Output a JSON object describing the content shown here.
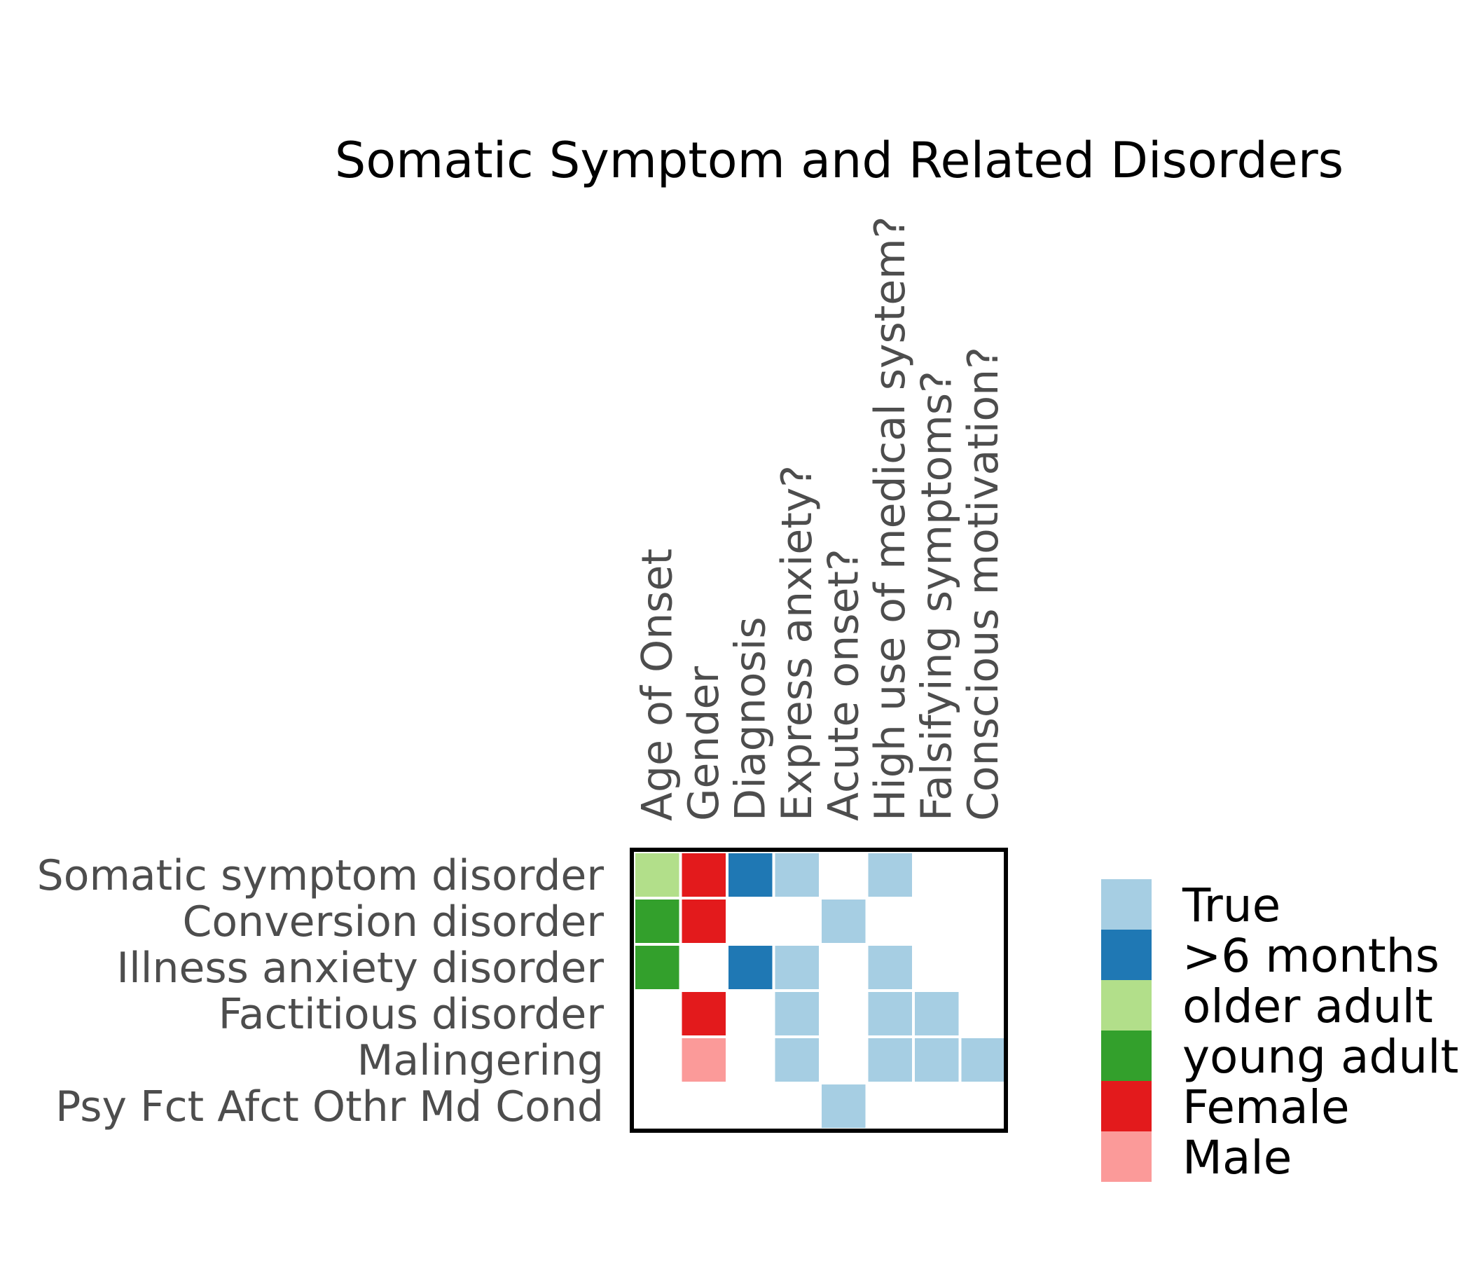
{
  "chart_data": {
    "type": "heatmap",
    "title": "Somatic Symptom and Related Disorders",
    "columns": [
      "Age of Onset",
      "Gender",
      "Diagnosis",
      "Express anxiety?",
      "Acute onset?",
      "High use of medical system?",
      "Falsifying symptoms?",
      "Conscious motivation?"
    ],
    "rows": [
      "Somatic symptom disorder",
      "Conversion disorder",
      "Illness anxiety disorder",
      "Factitious disorder",
      "Malingering",
      "Psy Fct Afct Othr Md Cond"
    ],
    "categories": [
      {
        "name": "True",
        "color": "#a6cee3"
      },
      {
        "name": ">6 months",
        "color": "#1f78b4"
      },
      {
        "name": "older adult",
        "color": "#b2df8a"
      },
      {
        "name": "young adult",
        "color": "#33a02c"
      },
      {
        "name": "Female",
        "color": "#e31a1c"
      },
      {
        "name": "Male",
        "color": "#fb9a99"
      }
    ],
    "cells": [
      [
        "older adult",
        "Female",
        ">6 months",
        "True",
        null,
        "True",
        null,
        null
      ],
      [
        "young adult",
        "Female",
        null,
        null,
        "True",
        null,
        null,
        null
      ],
      [
        "young adult",
        null,
        ">6 months",
        "True",
        null,
        "True",
        null,
        null
      ],
      [
        null,
        "Female",
        null,
        "True",
        null,
        "True",
        "True",
        null
      ],
      [
        null,
        "Male",
        null,
        "True",
        null,
        "True",
        "True",
        "True"
      ],
      [
        null,
        null,
        null,
        null,
        "True",
        null,
        null,
        null
      ]
    ],
    "legend_position": "right"
  }
}
